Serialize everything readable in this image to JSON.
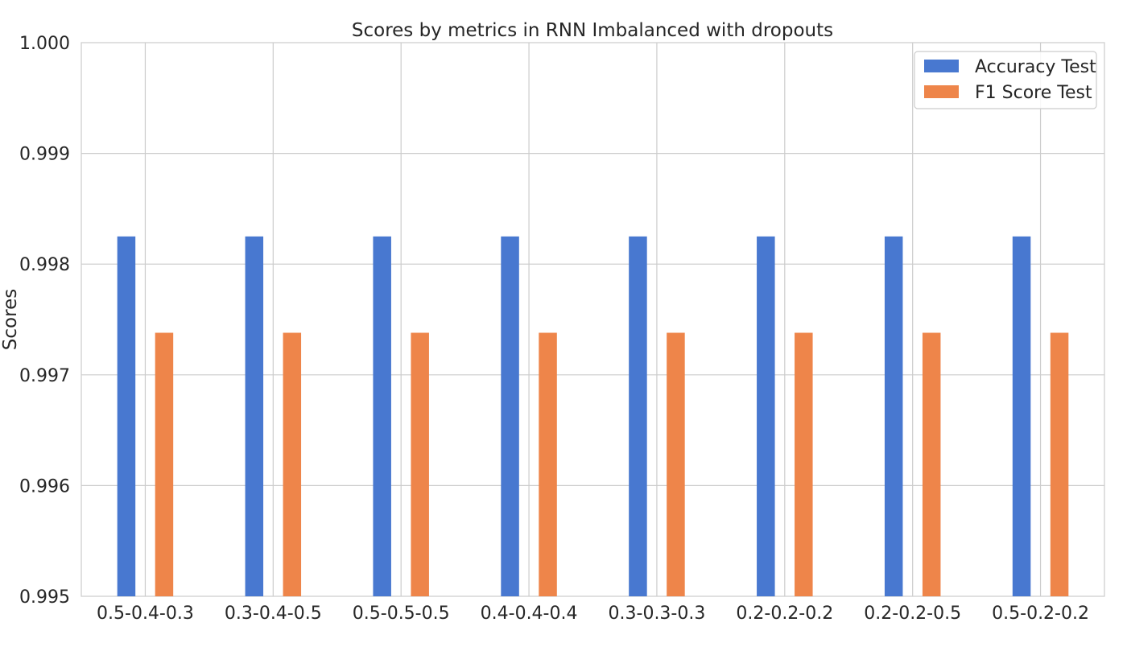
{
  "chart_data": {
    "type": "bar",
    "title": "Scores by metrics in RNN Imbalanced with dropouts",
    "xlabel": "",
    "ylabel": "Scores",
    "categories": [
      "0.5-0.4-0.3",
      "0.3-0.4-0.5",
      "0.5-0.5-0.5",
      "0.4-0.4-0.4",
      "0.3-0.3-0.3",
      "0.2-0.2-0.2",
      "0.2-0.2-0.5",
      "0.5-0.2-0.2"
    ],
    "series": [
      {
        "name": "Accuracy Test",
        "color": "#4878d0",
        "values": [
          0.99825,
          0.99825,
          0.99825,
          0.99825,
          0.99825,
          0.99825,
          0.99825,
          0.99825
        ]
      },
      {
        "name": "F1 Score Test",
        "color": "#ee854a",
        "values": [
          0.99738,
          0.99738,
          0.99738,
          0.99738,
          0.99738,
          0.99738,
          0.99738,
          0.99738
        ]
      }
    ],
    "ylim": [
      0.995,
      1.0
    ],
    "yticks": [
      "0.995",
      "0.996",
      "0.997",
      "0.998",
      "0.999",
      "1.000"
    ],
    "grid": true,
    "legend_position": "top-right"
  }
}
